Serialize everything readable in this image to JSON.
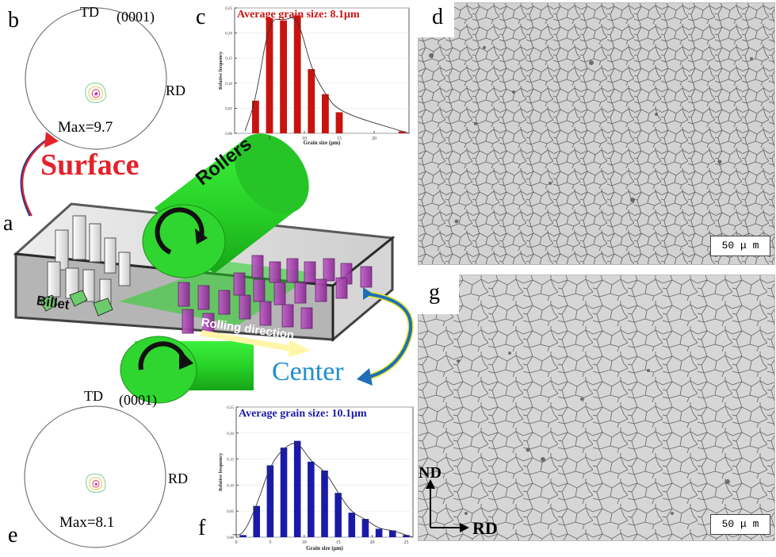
{
  "panels": {
    "a": "a",
    "b": "b",
    "c": "c",
    "d": "d",
    "e": "e",
    "f": "f",
    "g": "g"
  },
  "pole_figures": [
    {
      "label_td": "TD",
      "label_plane": "(0001)",
      "label_rd": "RD",
      "max_text": "Max=9.7"
    },
    {
      "label_td": "TD",
      "label_plane": "(0001)",
      "label_rd": "RD",
      "max_text": "Max=8.1"
    }
  ],
  "schematic": {
    "surface": "Surface",
    "center": "Center",
    "rollers": "Rollers",
    "billet": "Billet",
    "rolling_direction": "Rolling direction",
    "colors": {
      "surface": "#e3222b",
      "center": "#1e8fd0",
      "roller": "#2ee62e"
    }
  },
  "micrographs": {
    "scale_d": "50 μ m",
    "scale_g": "50 μ m",
    "axis_nd": "ND",
    "axis_rd": "RD"
  },
  "chart_data": [
    {
      "type": "bar",
      "title": "Average grain size: 8.1μm",
      "xlabel": "Grain size (μm)",
      "ylabel": "Relative frequency",
      "x": [
        3,
        5,
        7,
        9,
        11,
        13,
        15,
        24
      ],
      "values": [
        0.065,
        0.23,
        0.225,
        0.235,
        0.128,
        0.078,
        0.042,
        0.004
      ],
      "xlim": [
        0,
        25
      ],
      "ylim": [
        0,
        0.25
      ],
      "xticks": [
        "5",
        "10",
        "15",
        "20"
      ],
      "yticks": [
        "0.00",
        "0.05",
        "0.10",
        "0.15",
        "0.20",
        "0.25"
      ],
      "color": "#c8140f",
      "fit_curve": true
    },
    {
      "type": "bar",
      "title": "Average grain size: 10.1μm",
      "xlabel": "Grain size (μm)",
      "ylabel": "Relative frequency",
      "x": [
        1,
        3,
        5,
        7,
        9,
        11,
        13,
        15,
        17,
        19,
        21,
        23,
        25
      ],
      "values": [
        0.004,
        0.06,
        0.138,
        0.172,
        0.185,
        0.145,
        0.128,
        0.085,
        0.047,
        0.035,
        0.016,
        0.013,
        0.004
      ],
      "xlim": [
        0,
        26
      ],
      "ylim": [
        0,
        0.25
      ],
      "xticks": [
        "0",
        "5",
        "10",
        "15",
        "20",
        "25"
      ],
      "yticks": [
        "0.00",
        "0.05",
        "0.10",
        "0.15",
        "0.20",
        "0.25"
      ],
      "color": "#1a1aa8",
      "fit_curve": true
    }
  ]
}
